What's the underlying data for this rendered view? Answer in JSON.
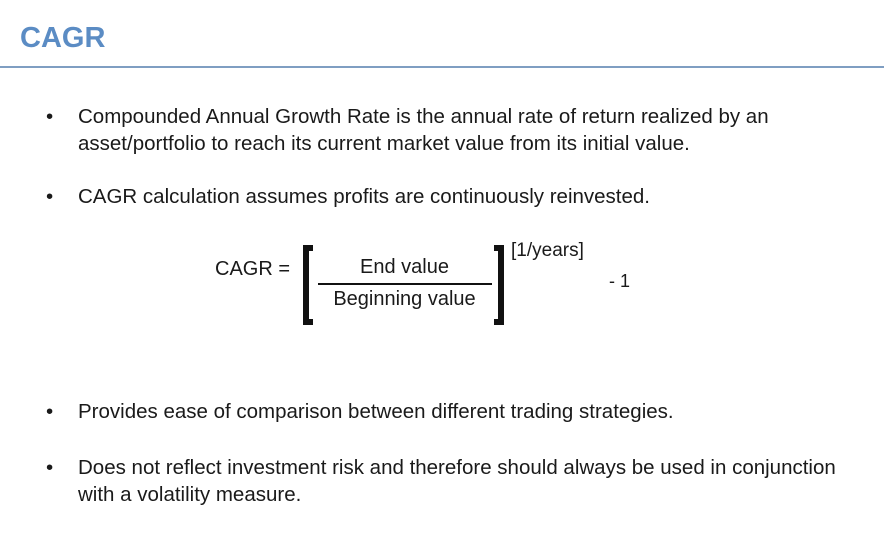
{
  "title": "CAGR",
  "bullets": [
    "Compounded Annual Growth Rate is the annual rate of return realized by an asset/portfolio to reach its current market value from its initial value.",
    "CAGR calculation assumes profits are continuously reinvested.",
    "Provides ease of comparison between different trading strategies.",
    "Does not reflect investment risk and therefore should always be used in conjunction with a volatility measure."
  ],
  "bullet_symbol": "•",
  "formula": {
    "lhs": "CAGR =",
    "numerator": "End value",
    "denominator": "Beginning value",
    "exponent": "[1/years]",
    "tail": "- 1"
  },
  "colors": {
    "title": "#5b8cc4",
    "rule": "#7f9ec2"
  }
}
